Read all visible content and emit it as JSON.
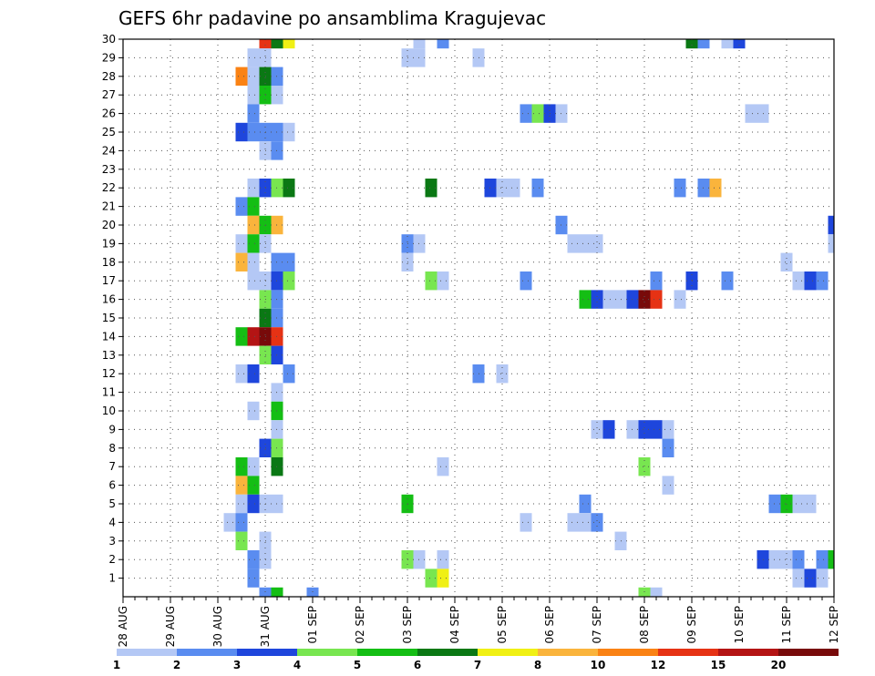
{
  "chart_data": {
    "type": "heatmap",
    "title": "GEFS 6hr padavine po ansamblima Kragujevac",
    "x_tick_labels": [
      "28 AUG",
      "29 AUG",
      "30 AUG",
      "31 AUG",
      "01 SEP",
      "02 SEP",
      "03 SEP",
      "04 SEP",
      "05 SEP",
      "06 SEP",
      "07 SEP",
      "08 SEP",
      "09 SEP",
      "10 SEP",
      "11 SEP",
      "12 SEP"
    ],
    "y_tick_labels": [
      "1",
      "2",
      "3",
      "4",
      "5",
      "6",
      "7",
      "8",
      "9",
      "10",
      "11",
      "12",
      "13",
      "14",
      "15",
      "16",
      "17",
      "18",
      "19",
      "20",
      "21",
      "22",
      "23",
      "24",
      "25",
      "26",
      "27",
      "28",
      "29",
      "30"
    ],
    "x_steps_per_day": 4,
    "grid": "dotted",
    "colorbar": {
      "labels": [
        "1",
        "2",
        "3",
        "4",
        "5",
        "6",
        "7",
        "8",
        "10",
        "12",
        "15",
        "20"
      ],
      "colors": [
        "#b4c8f5",
        "#5a8cf0",
        "#1e46dc",
        "#78e650",
        "#14be14",
        "#0a7814",
        "#f0f014",
        "#fab43c",
        "#fa8214",
        "#e63214",
        "#b41414",
        "#780a0a"
      ]
    },
    "cells": [
      [
        12,
        30,
        9
      ],
      [
        13,
        30,
        5
      ],
      [
        14,
        30,
        6
      ],
      [
        25,
        30,
        0
      ],
      [
        27,
        30,
        1
      ],
      [
        48,
        30,
        5
      ],
      [
        49,
        30,
        1
      ],
      [
        51,
        30,
        0
      ],
      [
        52,
        30,
        2
      ],
      [
        11,
        29,
        0
      ],
      [
        12,
        29,
        0
      ],
      [
        24,
        29,
        0
      ],
      [
        25,
        29,
        0
      ],
      [
        30,
        29,
        0
      ],
      [
        10,
        28,
        8
      ],
      [
        11,
        28,
        0
      ],
      [
        12,
        28,
        5
      ],
      [
        13,
        28,
        1
      ],
      [
        11,
        27,
        0
      ],
      [
        12,
        27,
        4
      ],
      [
        13,
        27,
        0
      ],
      [
        11,
        26,
        1
      ],
      [
        34,
        26,
        1
      ],
      [
        35,
        26,
        3
      ],
      [
        36,
        26,
        2
      ],
      [
        37,
        26,
        0
      ],
      [
        53,
        26,
        0
      ],
      [
        54,
        26,
        0
      ],
      [
        10,
        25,
        2
      ],
      [
        11,
        25,
        1
      ],
      [
        12,
        25,
        1
      ],
      [
        13,
        25,
        1
      ],
      [
        14,
        25,
        0
      ],
      [
        12,
        24,
        0
      ],
      [
        13,
        24,
        1
      ],
      [
        11,
        22,
        0
      ],
      [
        12,
        22,
        2
      ],
      [
        13,
        22,
        3
      ],
      [
        14,
        22,
        5
      ],
      [
        26,
        22,
        5
      ],
      [
        31,
        22,
        2
      ],
      [
        32,
        22,
        0
      ],
      [
        33,
        22,
        0
      ],
      [
        35,
        22,
        1
      ],
      [
        47,
        22,
        1
      ],
      [
        49,
        22,
        1
      ],
      [
        50,
        22,
        7
      ],
      [
        10,
        21,
        1
      ],
      [
        11,
        21,
        4
      ],
      [
        11,
        20,
        7
      ],
      [
        12,
        20,
        4
      ],
      [
        13,
        20,
        7
      ],
      [
        37,
        20,
        1
      ],
      [
        60,
        20,
        2
      ],
      [
        10,
        19,
        0
      ],
      [
        11,
        19,
        4
      ],
      [
        12,
        19,
        0
      ],
      [
        24,
        19,
        1
      ],
      [
        25,
        19,
        0
      ],
      [
        38,
        19,
        0
      ],
      [
        39,
        19,
        0
      ],
      [
        40,
        19,
        0
      ],
      [
        60,
        19,
        0
      ],
      [
        10,
        18,
        7
      ],
      [
        11,
        18,
        0
      ],
      [
        13,
        18,
        1
      ],
      [
        14,
        18,
        1
      ],
      [
        24,
        18,
        0
      ],
      [
        56,
        18,
        0
      ],
      [
        11,
        17,
        0
      ],
      [
        12,
        17,
        0
      ],
      [
        13,
        17,
        2
      ],
      [
        14,
        17,
        3
      ],
      [
        26,
        17,
        3
      ],
      [
        27,
        17,
        0
      ],
      [
        34,
        17,
        1
      ],
      [
        45,
        17,
        1
      ],
      [
        48,
        17,
        2
      ],
      [
        51,
        17,
        1
      ],
      [
        57,
        17,
        0
      ],
      [
        58,
        17,
        2
      ],
      [
        59,
        17,
        1
      ],
      [
        12,
        16,
        3
      ],
      [
        13,
        16,
        1
      ],
      [
        39,
        16,
        4
      ],
      [
        40,
        16,
        2
      ],
      [
        41,
        16,
        0
      ],
      [
        42,
        16,
        0
      ],
      [
        43,
        16,
        2
      ],
      [
        44,
        16,
        11
      ],
      [
        45,
        16,
        9
      ],
      [
        47,
        16,
        0
      ],
      [
        12,
        15,
        5
      ],
      [
        13,
        15,
        1
      ],
      [
        10,
        14,
        4
      ],
      [
        11,
        14,
        10
      ],
      [
        12,
        14,
        11
      ],
      [
        13,
        14,
        9
      ],
      [
        12,
        13,
        3
      ],
      [
        13,
        13,
        2
      ],
      [
        10,
        12,
        0
      ],
      [
        11,
        12,
        2
      ],
      [
        14,
        12,
        1
      ],
      [
        30,
        12,
        1
      ],
      [
        32,
        12,
        0
      ],
      [
        13,
        11,
        0
      ],
      [
        11,
        10,
        0
      ],
      [
        13,
        10,
        4
      ],
      [
        13,
        9,
        0
      ],
      [
        40,
        9,
        0
      ],
      [
        41,
        9,
        2
      ],
      [
        43,
        9,
        0
      ],
      [
        44,
        9,
        2
      ],
      [
        45,
        9,
        2
      ],
      [
        46,
        9,
        0
      ],
      [
        12,
        8,
        2
      ],
      [
        13,
        8,
        3
      ],
      [
        46,
        8,
        1
      ],
      [
        10,
        7,
        4
      ],
      [
        11,
        7,
        0
      ],
      [
        13,
        7,
        5
      ],
      [
        27,
        7,
        0
      ],
      [
        44,
        7,
        3
      ],
      [
        10,
        6,
        7
      ],
      [
        11,
        6,
        4
      ],
      [
        46,
        6,
        0
      ],
      [
        10,
        5,
        0
      ],
      [
        11,
        5,
        2
      ],
      [
        12,
        5,
        0
      ],
      [
        13,
        5,
        0
      ],
      [
        24,
        5,
        4
      ],
      [
        39,
        5,
        1
      ],
      [
        55,
        5,
        1
      ],
      [
        56,
        5,
        4
      ],
      [
        57,
        5,
        0
      ],
      [
        58,
        5,
        0
      ],
      [
        9,
        4,
        0
      ],
      [
        10,
        4,
        1
      ],
      [
        34,
        4,
        0
      ],
      [
        38,
        4,
        0
      ],
      [
        39,
        4,
        0
      ],
      [
        40,
        4,
        1
      ],
      [
        10,
        3,
        3
      ],
      [
        12,
        3,
        0
      ],
      [
        42,
        3,
        0
      ],
      [
        11,
        2,
        1
      ],
      [
        12,
        2,
        0
      ],
      [
        24,
        2,
        3
      ],
      [
        25,
        2,
        0
      ],
      [
        27,
        2,
        0
      ],
      [
        54,
        2,
        2
      ],
      [
        55,
        2,
        0
      ],
      [
        56,
        2,
        0
      ],
      [
        57,
        2,
        1
      ],
      [
        59,
        2,
        1
      ],
      [
        60,
        2,
        4
      ],
      [
        11,
        1,
        1
      ],
      [
        26,
        1,
        3
      ],
      [
        27,
        1,
        6
      ],
      [
        57,
        1,
        0
      ],
      [
        58,
        1,
        2
      ],
      [
        59,
        1,
        0
      ],
      [
        12,
        0,
        1
      ],
      [
        13,
        0,
        4
      ],
      [
        16,
        0,
        1
      ],
      [
        44,
        0,
        3
      ],
      [
        45,
        0,
        0
      ]
    ]
  }
}
